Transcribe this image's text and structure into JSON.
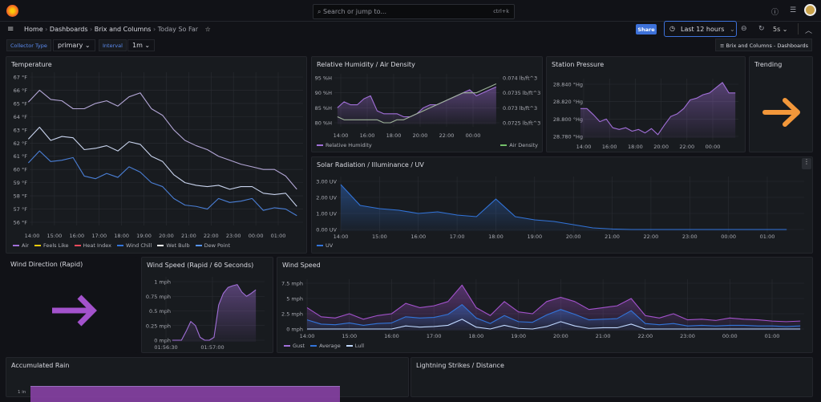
{
  "topbar": {
    "search_placeholder": "Search or jump to...",
    "search_shortcut": "ctrl+k",
    "icons": [
      "grafana-logo-icon",
      "help-icon",
      "rss-icon",
      "avatar"
    ]
  },
  "breadcrumb": [
    "Home",
    "Dashboards",
    "Brix and Columns",
    "Today So Far"
  ],
  "toolbar": {
    "share_label": "Share",
    "time_range": "Last 12 hours",
    "refresh_interval": "5s",
    "accent": "#3d71d9"
  },
  "variables": [
    {
      "label": "Collector Type",
      "value": "primary"
    },
    {
      "label": "Interval",
      "value": "1m"
    }
  ],
  "dashboard_link": "Brix and Columns - Dashboards",
  "panels": {
    "temperature": {
      "title": "Temperature",
      "y_ticks": [
        "67 °F",
        "66 °F",
        "65 °F",
        "64 °F",
        "63 °F",
        "62 °F",
        "61 °F",
        "60 °F",
        "59 °F",
        "58 °F",
        "57 °F",
        "56 °F"
      ],
      "y_values": [
        67,
        66,
        65,
        64,
        63,
        62,
        61,
        60,
        59,
        58,
        57,
        56
      ],
      "x_ticks": [
        "14:00",
        "15:00",
        "16:00",
        "17:00",
        "18:00",
        "19:00",
        "20:00",
        "21:00",
        "22:00",
        "23:00",
        "00:00",
        "01:00"
      ],
      "legend": [
        {
          "label": "Air",
          "color": "#a16fd8"
        },
        {
          "label": "Feels Like",
          "color": "#f2cc0c"
        },
        {
          "label": "Heat Index",
          "color": "#f2495c"
        },
        {
          "label": "Wind Chill",
          "color": "#3274d9"
        },
        {
          "label": "Wet Bulb",
          "color": "#ffffff"
        },
        {
          "label": "Dew Point",
          "color": "#5794f2"
        }
      ],
      "t_start": "13:50",
      "t_step_min": 30,
      "series": [
        {
          "name": "Air",
          "color": "#b3a6d6",
          "values": [
            65.1,
            66.0,
            65.3,
            65.2,
            64.6,
            64.6,
            65.0,
            65.2,
            64.8,
            65.5,
            65.8,
            64.6,
            64.1,
            63.0,
            62.2,
            61.8,
            61.5,
            61.0,
            60.7,
            60.4,
            60.2,
            60.0,
            60.0,
            59.5,
            58.5
          ]
        },
        {
          "name": "Wet Bulb",
          "color": "#c9d4ee",
          "values": [
            62.3,
            63.2,
            62.2,
            62.5,
            62.4,
            61.5,
            61.6,
            61.8,
            61.4,
            62.1,
            61.9,
            61.0,
            60.6,
            59.6,
            59.0,
            58.8,
            58.7,
            58.8,
            58.5,
            58.7,
            58.7,
            58.2,
            58.1,
            58.2,
            57.2
          ]
        },
        {
          "name": "Dew Point",
          "color": "#4a7fd6",
          "values": [
            60.5,
            61.4,
            60.6,
            60.7,
            60.9,
            59.5,
            59.3,
            59.7,
            59.4,
            60.2,
            59.8,
            59.0,
            58.7,
            57.8,
            57.3,
            57.2,
            57.0,
            57.8,
            57.5,
            57.6,
            57.8,
            56.9,
            57.1,
            57.0,
            56.5
          ]
        }
      ]
    },
    "humidity": {
      "title": "Relative Humidity / Air Density",
      "y_ticks": [
        "95 %H",
        "90 %H",
        "85 %H",
        "80 %H"
      ],
      "y_values": [
        95,
        90,
        85,
        80
      ],
      "y2_ticks": [
        "0.074 lb/ft^3",
        "0.0735 lb/ft^3",
        "0.073 lb/ft^3",
        "0.0725 lb/ft^3"
      ],
      "y2_values": [
        0.074,
        0.0735,
        0.073,
        0.0725
      ],
      "x_ticks": [
        "14:00",
        "16:00",
        "18:00",
        "20:00",
        "22:00",
        "00:00"
      ],
      "legend": [
        {
          "label": "Relative Humidity",
          "color": "#a16fd8"
        },
        {
          "label": "Air Density",
          "color": "#73bf69"
        }
      ],
      "t_start": "13:45",
      "t_step_min": 30,
      "series": [
        {
          "name": "Relative Humidity",
          "color": "#a16fd8",
          "fill": true,
          "values": [
            85,
            87,
            86,
            86,
            88,
            89,
            84,
            83,
            83,
            83,
            82,
            82,
            83,
            85,
            86,
            86,
            87,
            88,
            89,
            90,
            91,
            89,
            90,
            91,
            92
          ]
        },
        {
          "name": "Air Density",
          "color": "#9fb59a",
          "axis": "right",
          "values": [
            0.0727,
            0.0726,
            0.0726,
            0.0726,
            0.0726,
            0.0726,
            0.0726,
            0.0725,
            0.0725,
            0.0726,
            0.0726,
            0.0727,
            0.0728,
            0.0729,
            0.073,
            0.0731,
            0.0732,
            0.0733,
            0.0734,
            0.0735,
            0.0735,
            0.0735,
            0.0736,
            0.0737,
            0.0738
          ]
        }
      ]
    },
    "pressure": {
      "title": "Station Pressure",
      "y_ticks": [
        "28.840 °Hg",
        "28.820 °Hg",
        "28.800 °Hg",
        "28.780 °Hg"
      ],
      "y_values": [
        28.84,
        28.82,
        28.8,
        28.78
      ],
      "x_ticks": [
        "14:00",
        "16:00",
        "18:00",
        "20:00",
        "22:00",
        "00:00"
      ],
      "t_start": "13:45",
      "t_step_min": 30,
      "series": [
        {
          "name": "Station Pressure",
          "color": "#a16fd8",
          "fill": true,
          "values": [
            28.812,
            28.812,
            28.805,
            28.797,
            28.8,
            28.79,
            28.788,
            28.79,
            28.786,
            28.788,
            28.784,
            28.789,
            28.782,
            28.793,
            28.803,
            28.806,
            28.812,
            28.822,
            28.824,
            28.828,
            28.83,
            28.836,
            28.842,
            28.83,
            28.83
          ]
        }
      ]
    },
    "trending": {
      "title": "Trending",
      "arrow_color": "#f2973a",
      "direction": "right"
    },
    "solar": {
      "title": "Solar Radiation / Illuminance / UV",
      "y_ticks": [
        "3.00 UV",
        "2.00 UV",
        "1.00 UV",
        "0.00 UV"
      ],
      "y_values": [
        3,
        2,
        1,
        0
      ],
      "x_ticks": [
        "14:00",
        "15:00",
        "16:00",
        "17:00",
        "18:00",
        "19:00",
        "20:00",
        "21:00",
        "22:00",
        "23:00",
        "00:00",
        "01:00"
      ],
      "legend": [
        {
          "label": "UV",
          "color": "#3274d9"
        }
      ],
      "t_start": "14:00",
      "t_step_min": 30,
      "series": [
        {
          "name": "UV",
          "color": "#3274d9",
          "fill": true,
          "values": [
            2.8,
            1.5,
            1.3,
            1.2,
            1.0,
            1.1,
            0.9,
            0.8,
            1.9,
            0.8,
            0.6,
            0.5,
            0.3,
            0.1,
            0.03,
            0,
            0,
            0,
            0,
            0,
            0,
            0,
            0,
            0
          ]
        }
      ]
    },
    "wind_direction": {
      "title": "Wind Direction (Rapid)",
      "arrow_color": "#a352cc",
      "direction": "right"
    },
    "wind_rapid": {
      "title": "Wind Speed (Rapid / 60 Seconds)",
      "y_ticks": [
        "1 mph",
        "0.75 mph",
        "0.5 mph",
        "0.25 mph",
        "0 mph"
      ],
      "y_values": [
        1,
        0.75,
        0.5,
        0.25,
        0
      ],
      "x_ticks": [
        "01:56:30",
        "01:57:00"
      ],
      "t_start": "01:56:34",
      "t_step_sec": 3,
      "series": [
        {
          "name": "Wind Speed",
          "color": "#a16fd8",
          "fill": true,
          "values": [
            0,
            0,
            0,
            0.15,
            0.32,
            0.25,
            0.05,
            0,
            0,
            0.05,
            0.6,
            0.8,
            0.9,
            0.93,
            0.95,
            0.82,
            0.75,
            0.8,
            0.86
          ]
        }
      ]
    },
    "wind": {
      "title": "Wind Speed",
      "y_ticks": [
        "7.5 mph",
        "5 mph",
        "2.5 mph",
        "0 mph"
      ],
      "y_values": [
        7.5,
        5,
        2.5,
        0
      ],
      "x_ticks": [
        "14:00",
        "15:00",
        "16:00",
        "17:00",
        "18:00",
        "19:00",
        "20:00",
        "21:00",
        "22:00",
        "23:00",
        "00:00",
        "01:00"
      ],
      "legend": [
        {
          "label": "Gust",
          "color": "#a16fd8"
        },
        {
          "label": "Average",
          "color": "#3274d9"
        },
        {
          "label": "Lull",
          "color": "#c0d8ff"
        }
      ],
      "t_start": "14:00",
      "t_step_min": 20,
      "series": [
        {
          "name": "Gust",
          "color": "#a352cc",
          "fill": true,
          "values": [
            3.5,
            2,
            1.8,
            2.5,
            1.6,
            2.2,
            2.5,
            4.2,
            3.5,
            3.8,
            4.5,
            7.2,
            3.5,
            2.2,
            4.5,
            2.8,
            2.5,
            4.5,
            5.2,
            4.5,
            3.2,
            3.5,
            3.8,
            5.0,
            2.2,
            1.8,
            2.5,
            1.5,
            1.6,
            1.4,
            1.8,
            1.6,
            1.5,
            1.3,
            1.2,
            1.3
          ]
        },
        {
          "name": "Average",
          "color": "#3274d9",
          "fill": true,
          "values": [
            1.5,
            0.8,
            0.7,
            1.0,
            0.6,
            0.9,
            1.0,
            2.0,
            1.8,
            1.9,
            2.4,
            4.0,
            1.8,
            0.9,
            2.2,
            1.2,
            1.1,
            2.3,
            3.2,
            2.4,
            1.5,
            1.6,
            1.7,
            3.0,
            0.9,
            0.7,
            0.9,
            0.5,
            0.6,
            0.5,
            0.6,
            0.6,
            0.5,
            0.5,
            0.4,
            0.5
          ]
        },
        {
          "name": "Lull",
          "color": "#c0d8ff",
          "values": [
            0,
            0,
            0,
            0,
            0,
            0,
            0,
            0.5,
            0.3,
            0.4,
            0.6,
            1.6,
            0.3,
            0,
            0.6,
            0.1,
            0,
            0.4,
            1.2,
            0.5,
            0.1,
            0.2,
            0.2,
            0.8,
            0,
            0,
            0,
            0,
            0,
            0,
            0,
            0,
            0,
            0,
            0,
            0
          ]
        }
      ]
    },
    "rain": {
      "title": "Accumulated Rain",
      "y_ticks": [
        "1 in"
      ],
      "color": "#8e44ad"
    },
    "lightning": {
      "title": "Lightning Strikes / Distance"
    }
  }
}
